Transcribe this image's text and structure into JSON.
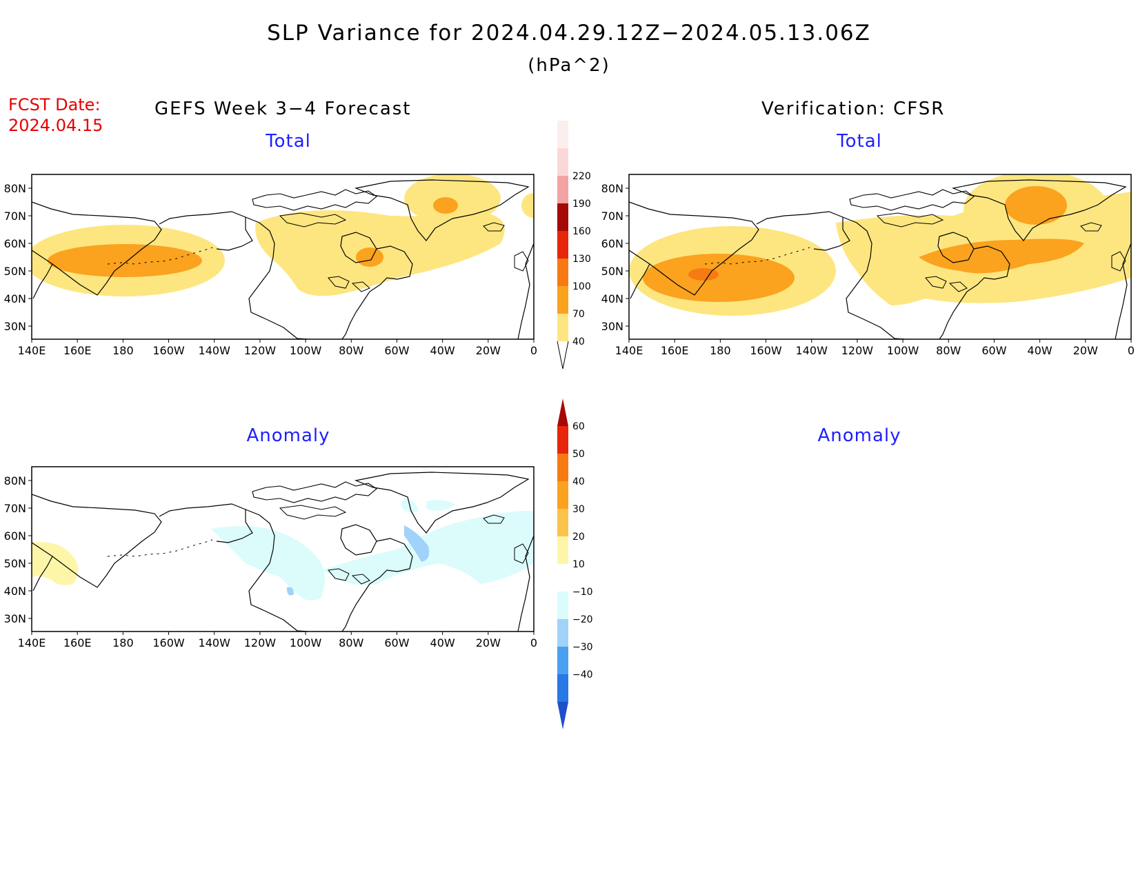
{
  "title": "SLP Variance for 2024.04.29.12Z−2024.05.13.06Z",
  "units": "(hPa^2)",
  "fcst_date_label": "FCST Date:",
  "fcst_date_value": "2024.04.15",
  "panels": {
    "gefs_title": "GEFS Week 3−4 Forecast",
    "verification_title": "Verification: CFSR",
    "forecast_total_label": "Total",
    "verification_total_label": "Total",
    "forecast_anomaly_label": "Anomaly",
    "verification_anomaly_label": "Anomaly"
  },
  "map": {
    "lat_labels": [
      "80N",
      "70N",
      "60N",
      "50N",
      "40N",
      "30N"
    ],
    "lon_labels": [
      "140E",
      "160E",
      "180",
      "160W",
      "140W",
      "120W",
      "100W",
      "80W",
      "60W",
      "40W",
      "20W",
      "0"
    ]
  },
  "colorbars": {
    "total": {
      "levels": [
        "40",
        "70",
        "100",
        "130",
        "160",
        "190",
        "220"
      ],
      "colors": [
        "#fde680",
        "#fba21e",
        "#f77a12",
        "#e7260c",
        "#a50a07",
        "#f2a3a3",
        "#fbd8d8",
        "#fdeeee"
      ]
    },
    "anomaly": {
      "levels": [
        "60",
        "50",
        "40",
        "30",
        "20",
        "10",
        "−10",
        "−20",
        "−30",
        "−40"
      ],
      "colors_top_to_bottom": [
        "#a50a07",
        "#e7260c",
        "#f77a12",
        "#fba21e",
        "#fbc34a",
        "#fdf6a8",
        "#ffffff",
        "#dcfcfc",
        "#a0d2fa",
        "#4aa0f0",
        "#2878e6",
        "#1e50c8"
      ]
    }
  }
}
